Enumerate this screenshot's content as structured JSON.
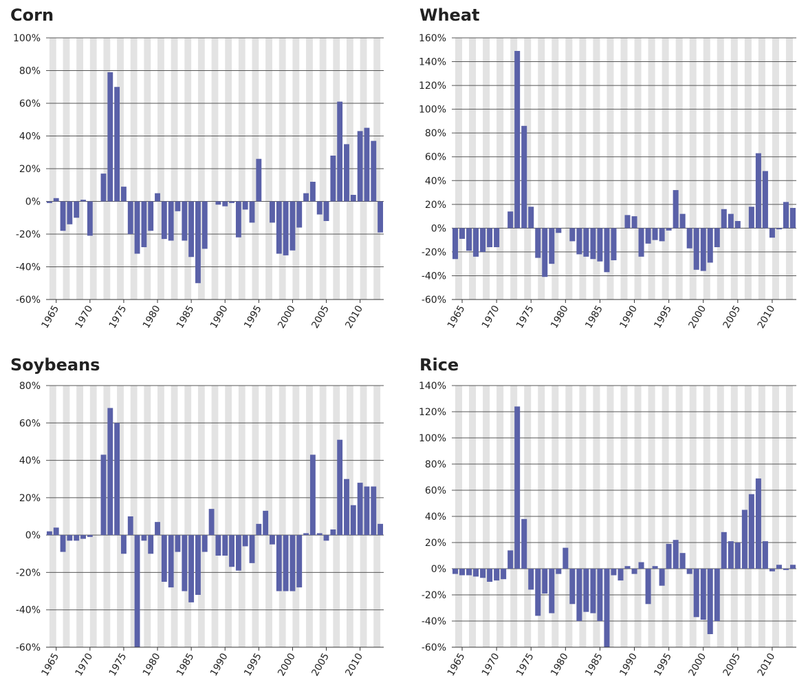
{
  "chart_data": [
    {
      "type": "bar",
      "title": "Corn",
      "color": "#5a61a8",
      "categories": [
        null,
        "1965",
        null,
        null,
        null,
        null,
        "1970",
        null,
        null,
        null,
        null,
        "1975",
        null,
        null,
        null,
        null,
        "1980",
        null,
        null,
        null,
        null,
        "1985",
        null,
        null,
        null,
        null,
        "1990",
        null,
        null,
        null,
        null,
        "1995",
        null,
        null,
        null,
        null,
        "2000",
        null,
        null,
        null,
        null,
        "2005",
        null,
        null,
        null,
        null,
        "2010",
        null,
        null,
        null
      ],
      "values": [
        -1,
        2,
        -18,
        -14,
        -10,
        1,
        -21,
        0,
        17,
        79,
        70,
        9,
        -20,
        -32,
        -28,
        -18,
        5,
        -23,
        -24,
        -6,
        -24,
        -34,
        -50,
        -29,
        0,
        -2,
        -3,
        -1,
        -22,
        -5,
        -13,
        26,
        0,
        -13,
        -32,
        -33,
        -30,
        -16,
        5,
        12,
        -8,
        -12,
        28,
        61,
        35,
        4,
        43,
        45,
        37,
        -19
      ],
      "ylim": [
        -60,
        100
      ],
      "yticks": [
        {
          "value": -60,
          "label": "-60%"
        },
        {
          "value": -40,
          "label": "-40%"
        },
        {
          "value": -20,
          "label": "-20%"
        },
        {
          "value": 0,
          "label": "0%"
        },
        {
          "value": 20,
          "label": "20%"
        },
        {
          "value": 40,
          "label": "40%"
        },
        {
          "value": 60,
          "label": "60%"
        },
        {
          "value": 80,
          "label": "80%"
        },
        {
          "value": 100,
          "label": "100%"
        }
      ],
      "grid": true
    },
    {
      "type": "bar",
      "title": "Wheat",
      "color": "#5a61a8",
      "categories": [
        null,
        "1965",
        null,
        null,
        null,
        null,
        "1970",
        null,
        null,
        null,
        null,
        "1975",
        null,
        null,
        null,
        null,
        "1980",
        null,
        null,
        null,
        null,
        "1985",
        null,
        null,
        null,
        null,
        "1990",
        null,
        null,
        null,
        null,
        "1995",
        null,
        null,
        null,
        null,
        "2000",
        null,
        null,
        null,
        null,
        "2005",
        null,
        null,
        null,
        null,
        "2010",
        null,
        null,
        null
      ],
      "values": [
        -26,
        -9,
        -19,
        -24,
        -20,
        -16,
        -16,
        0,
        14,
        149,
        86,
        18,
        -25,
        -41,
        -30,
        -4,
        0,
        -11,
        -22,
        -24,
        -26,
        -28,
        -37,
        -27,
        0,
        11,
        10,
        -24,
        -13,
        -10,
        -11,
        -2,
        32,
        12,
        -17,
        -35,
        -36,
        -29,
        -16,
        16,
        12,
        6,
        0,
        18,
        63,
        48,
        -8,
        -1,
        22,
        17
      ],
      "ylim": [
        -60,
        160
      ],
      "yticks": [
        {
          "value": -60,
          "label": "-60%"
        },
        {
          "value": -40,
          "label": "-40%"
        },
        {
          "value": -20,
          "label": "-20%"
        },
        {
          "value": 0,
          "label": "0%"
        },
        {
          "value": 20,
          "label": "20%"
        },
        {
          "value": 40,
          "label": "40%"
        },
        {
          "value": 60,
          "label": "60%"
        },
        {
          "value": 80,
          "label": "80%"
        },
        {
          "value": 100,
          "label": "100%"
        },
        {
          "value": 120,
          "label": "120%"
        },
        {
          "value": 140,
          "label": "140%"
        },
        {
          "value": 160,
          "label": "160%"
        }
      ],
      "grid": true
    },
    {
      "type": "bar",
      "title": "Soybeans",
      "color": "#5a61a8",
      "categories": [
        null,
        "1965",
        null,
        null,
        null,
        null,
        "1970",
        null,
        null,
        null,
        null,
        "1975",
        null,
        null,
        null,
        null,
        "1980",
        null,
        null,
        null,
        null,
        "1985",
        null,
        null,
        null,
        null,
        "1990",
        null,
        null,
        null,
        null,
        "1995",
        null,
        null,
        null,
        null,
        "2000",
        null,
        null,
        null,
        null,
        "2005",
        null,
        null,
        null,
        null,
        "2010",
        null,
        null,
        null
      ],
      "values": [
        2,
        4,
        -9,
        -3,
        -3,
        -2,
        -1,
        0,
        43,
        68,
        60,
        -10,
        10,
        -60,
        -3,
        -10,
        7,
        -25,
        -28,
        -9,
        -30,
        -36,
        -32,
        -9,
        14,
        -11,
        -11,
        -17,
        -19,
        -6,
        -15,
        6,
        13,
        -5,
        -30,
        -30,
        -30,
        -28,
        1,
        43,
        1,
        -3,
        3,
        51,
        30,
        16,
        28,
        26,
        26,
        6
      ],
      "ylim": [
        -60,
        80
      ],
      "yticks": [
        {
          "value": -60,
          "label": "-60%"
        },
        {
          "value": -40,
          "label": "-40%"
        },
        {
          "value": -20,
          "label": "-20%"
        },
        {
          "value": 0,
          "label": "0%"
        },
        {
          "value": 20,
          "label": "20%"
        },
        {
          "value": 40,
          "label": "40%"
        },
        {
          "value": 60,
          "label": "60%"
        },
        {
          "value": 80,
          "label": "80%"
        }
      ],
      "grid": true
    },
    {
      "type": "bar",
      "title": "Rice",
      "color": "#5a61a8",
      "categories": [
        null,
        "1965",
        null,
        null,
        null,
        null,
        "1970",
        null,
        null,
        null,
        null,
        "1975",
        null,
        null,
        null,
        null,
        "1980",
        null,
        null,
        null,
        null,
        "1985",
        null,
        null,
        null,
        null,
        "1990",
        null,
        null,
        null,
        null,
        "1995",
        null,
        null,
        null,
        null,
        "2000",
        null,
        null,
        null,
        null,
        "2005",
        null,
        null,
        null,
        null,
        "2010",
        null,
        null,
        null
      ],
      "values": [
        -4,
        -5,
        -5,
        -6,
        -7,
        -10,
        -9,
        -8,
        14,
        124,
        38,
        -16,
        -36,
        -19,
        -34,
        -4,
        16,
        -27,
        -40,
        -33,
        -34,
        -40,
        -60,
        -5,
        -9,
        2,
        -4,
        5,
        -27,
        2,
        -13,
        19,
        22,
        12,
        -4,
        -37,
        -39,
        -50,
        -40,
        28,
        21,
        20,
        45,
        57,
        69,
        21,
        -2,
        3,
        -1,
        3
      ],
      "ylim": [
        -60,
        140
      ],
      "yticks": [
        {
          "value": -60,
          "label": "-60%"
        },
        {
          "value": -40,
          "label": "-40%"
        },
        {
          "value": -20,
          "label": "-20%"
        },
        {
          "value": 0,
          "label": "0%"
        },
        {
          "value": 20,
          "label": "20%"
        },
        {
          "value": 40,
          "label": "40%"
        },
        {
          "value": 60,
          "label": "60%"
        },
        {
          "value": 80,
          "label": "80%"
        },
        {
          "value": 100,
          "label": "100%"
        },
        {
          "value": 120,
          "label": "120%"
        },
        {
          "value": 140,
          "label": "140%"
        }
      ],
      "grid": true
    }
  ]
}
